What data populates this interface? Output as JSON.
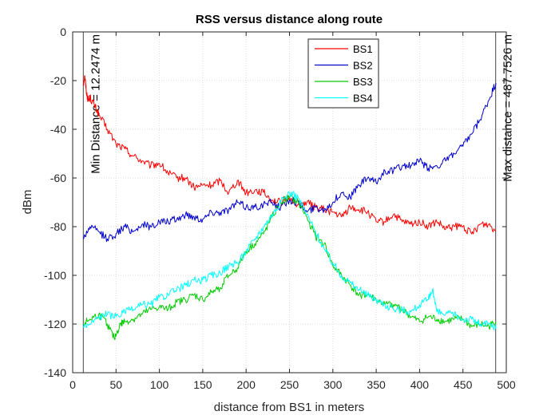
{
  "chart_data": {
    "type": "line",
    "title": "RSS versus distance along route",
    "xlabel": "distance from BS1 in meters",
    "ylabel": "dBm",
    "xlim": [
      0,
      500
    ],
    "ylim": [
      -140,
      0
    ],
    "xticks": [
      0,
      50,
      100,
      150,
      200,
      250,
      300,
      350,
      400,
      450,
      500
    ],
    "yticks": [
      -140,
      -120,
      -100,
      -80,
      -60,
      -40,
      -20,
      0
    ],
    "grid": true,
    "legend_position": "top-center",
    "series": [
      {
        "name": "BS1",
        "color": "#ff0000",
        "x": [
          12,
          14,
          16,
          18,
          20,
          25,
          30,
          40,
          50,
          60,
          70,
          80,
          90,
          100,
          110,
          120,
          130,
          140,
          150,
          160,
          170,
          180,
          190,
          200,
          210,
          220,
          230,
          240,
          250,
          260,
          270,
          280,
          290,
          300,
          310,
          320,
          330,
          340,
          350,
          360,
          370,
          380,
          390,
          400,
          410,
          420,
          430,
          440,
          450,
          460,
          470,
          480,
          488
        ],
        "y": [
          -22,
          -18,
          -25,
          -28,
          -27,
          -30,
          -34,
          -40,
          -46,
          -48,
          -51,
          -53,
          -55,
          -54,
          -58,
          -60,
          -60,
          -64,
          -63,
          -63,
          -61,
          -66,
          -61,
          -66,
          -65,
          -66,
          -69,
          -70,
          -68,
          -71,
          -70,
          -72,
          -73,
          -74,
          -76,
          -72,
          -73,
          -74,
          -78,
          -78,
          -75,
          -78,
          -79,
          -78,
          -80,
          -78,
          -81,
          -80,
          -80,
          -83,
          -79,
          -79,
          -82
        ]
      },
      {
        "name": "BS2",
        "color": "#0000cc",
        "x": [
          12,
          20,
          30,
          40,
          50,
          60,
          70,
          80,
          90,
          100,
          110,
          120,
          130,
          140,
          150,
          160,
          170,
          180,
          190,
          200,
          210,
          220,
          230,
          240,
          250,
          260,
          270,
          280,
          290,
          300,
          310,
          320,
          330,
          340,
          350,
          360,
          370,
          380,
          390,
          400,
          410,
          420,
          430,
          440,
          450,
          460,
          470,
          480,
          488
        ],
        "y": [
          -85,
          -80,
          -82,
          -85,
          -83,
          -80,
          -82,
          -79,
          -80,
          -78,
          -78,
          -77,
          -75,
          -76,
          -77,
          -74,
          -74,
          -73,
          -70,
          -72,
          -72,
          -71,
          -70,
          -72,
          -69,
          -70,
          -74,
          -72,
          -73,
          -70,
          -66,
          -68,
          -63,
          -60,
          -62,
          -57,
          -57,
          -55,
          -55,
          -53,
          -56,
          -55,
          -53,
          -50,
          -47,
          -42,
          -36,
          -28,
          -21
        ]
      },
      {
        "name": "BS3",
        "color": "#00cc00",
        "x": [
          12,
          20,
          30,
          40,
          48,
          55,
          60,
          70,
          80,
          90,
          100,
          110,
          120,
          130,
          140,
          150,
          160,
          170,
          180,
          190,
          200,
          210,
          220,
          230,
          240,
          250,
          260,
          270,
          280,
          290,
          300,
          310,
          320,
          330,
          340,
          350,
          360,
          370,
          380,
          390,
          400,
          410,
          420,
          430,
          440,
          450,
          460,
          470,
          480,
          488
        ],
        "y": [
          -120,
          -118,
          -116,
          -120,
          -126,
          -120,
          -119,
          -118,
          -116,
          -114,
          -113,
          -114,
          -111,
          -110,
          -108,
          -110,
          -107,
          -105,
          -100,
          -97,
          -90,
          -87,
          -83,
          -76,
          -70,
          -68,
          -70,
          -76,
          -84,
          -87,
          -96,
          -100,
          -104,
          -108,
          -108,
          -110,
          -112,
          -112,
          -114,
          -117,
          -119,
          -117,
          -118,
          -119,
          -118,
          -118,
          -121,
          -120,
          -121,
          -119
        ]
      },
      {
        "name": "BS4",
        "color": "#00ffff",
        "x": [
          12,
          20,
          30,
          40,
          50,
          60,
          70,
          80,
          90,
          100,
          110,
          120,
          130,
          140,
          150,
          160,
          170,
          180,
          190,
          200,
          210,
          220,
          230,
          240,
          250,
          260,
          270,
          280,
          290,
          300,
          310,
          320,
          330,
          340,
          350,
          360,
          370,
          380,
          390,
          400,
          410,
          415,
          420,
          430,
          440,
          450,
          460,
          470,
          480,
          488
        ],
        "y": [
          -121,
          -120,
          -117,
          -116,
          -117,
          -115,
          -114,
          -112,
          -112,
          -109,
          -108,
          -106,
          -104,
          -102,
          -102,
          -100,
          -99,
          -96,
          -95,
          -90,
          -85,
          -80,
          -75,
          -70,
          -66,
          -68,
          -75,
          -82,
          -89,
          -95,
          -100,
          -103,
          -106,
          -108,
          -110,
          -112,
          -114,
          -114,
          -115,
          -112,
          -110,
          -106,
          -115,
          -116,
          -116,
          -118,
          -118,
          -120,
          -120,
          -122
        ]
      }
    ],
    "vlines": [
      {
        "x": 12.2474,
        "label": "Min Distance = 12.2474 m"
      },
      {
        "x": 487.7526,
        "label": "Max distance = 487.7526 m"
      }
    ]
  }
}
